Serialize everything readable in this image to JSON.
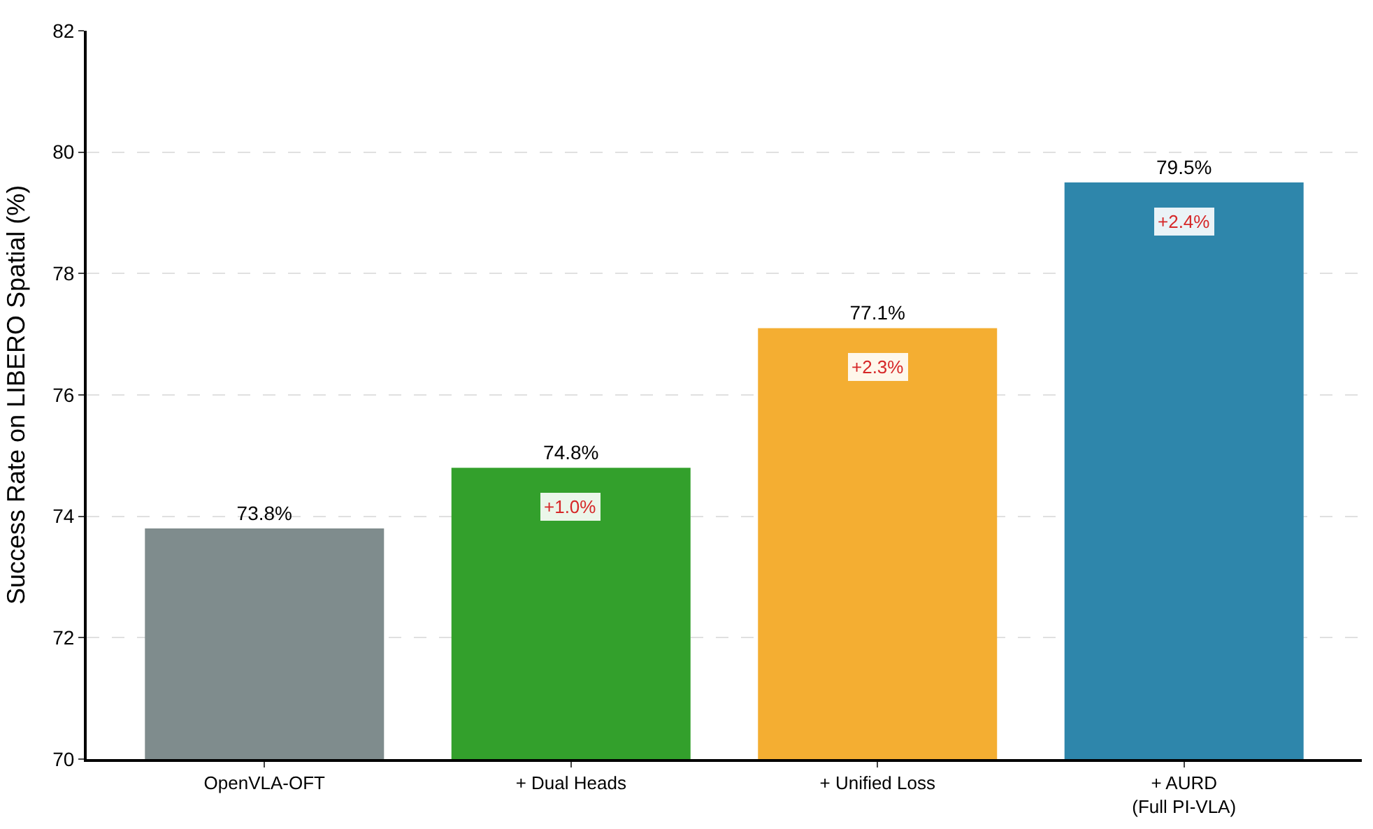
{
  "chart_data": {
    "type": "bar",
    "ylabel": "Success Rate on LIBERO Spatial (%)",
    "categories": [
      "OpenVLA-OFT",
      "+ Dual Heads",
      "+ Unified Loss",
      "+ AURD\n(Full PI-VLA)"
    ],
    "values": [
      73.8,
      74.8,
      77.1,
      79.5
    ],
    "colors": [
      "#7f8c8d",
      "#33a02c",
      "#f4ae32",
      "#2e86ab"
    ],
    "value_labels": [
      "73.8%",
      "74.8%",
      "77.1%",
      "79.5%"
    ],
    "annotations": [
      "+1.0%",
      "+2.3%",
      "+2.4%"
    ],
    "ylim": [
      70,
      82
    ],
    "yticks": [
      70,
      72,
      74,
      76,
      78,
      80,
      82
    ],
    "grid": "y",
    "legend": false
  }
}
